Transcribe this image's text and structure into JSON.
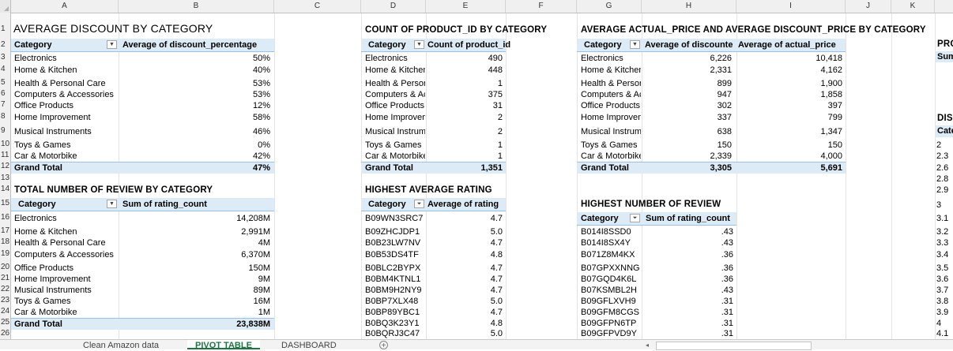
{
  "columns": [
    "A",
    "B",
    "C",
    "D",
    "E",
    "F",
    "G",
    "H",
    "I",
    "J",
    "K"
  ],
  "rows": [
    "1",
    "2",
    "3",
    "4",
    "5",
    "6",
    "7",
    "8",
    "9",
    "10",
    "11",
    "12",
    "13",
    "14",
    "15",
    "16",
    "17",
    "18",
    "19",
    "20",
    "21",
    "22",
    "23",
    "24",
    "25",
    "26"
  ],
  "pivot1": {
    "title": "AVERAGE DISCOUNT BY CATEGORY",
    "h1": "Category",
    "h2": "Average of discount_percentage",
    "rows": [
      {
        "c": "Electronics",
        "v": "50%"
      },
      {
        "c": "Home & Kitchen",
        "v": "40%"
      },
      {
        "c": "Health & Personal Care",
        "v": "53%"
      },
      {
        "c": "Computers & Accessories",
        "v": "53%"
      },
      {
        "c": "Office Products",
        "v": "12%"
      },
      {
        "c": "Home Improvement",
        "v": "58%"
      },
      {
        "c": "Musical Instruments",
        "v": "46%"
      },
      {
        "c": "Toys & Games",
        "v": "0%"
      },
      {
        "c": "Car & Motorbike",
        "v": "42%"
      }
    ],
    "total_label": "Grand Total",
    "total": "47%"
  },
  "pivot2": {
    "title": "COUNT OF PRODUCT_ID BY CATEGORY",
    "h1": "Category",
    "h2": "Count of product_id",
    "rows": [
      {
        "c": "Electronics",
        "v": "490"
      },
      {
        "c": "Home & Kitchen",
        "v": "448"
      },
      {
        "c": "Health & Person",
        "v": "1"
      },
      {
        "c": "Computers & Ac",
        "v": "375"
      },
      {
        "c": "Office Products",
        "v": "31"
      },
      {
        "c": "Home Improvem",
        "v": "2"
      },
      {
        "c": "Musical Instrume",
        "v": "2"
      },
      {
        "c": "Toys & Games",
        "v": "1"
      },
      {
        "c": "Car & Motorbike",
        "v": "1"
      }
    ],
    "total_label": "Grand Total",
    "total": "1,351"
  },
  "pivot3": {
    "title": "AVERAGE ACTUAL_PRICE AND AVERAGE DISCOUNT_PRICE BY CATEGORY",
    "h1": "Category",
    "h2": "Average of discounte",
    "h3": "Average of actual_price",
    "rows": [
      {
        "c": "Electronics",
        "v1": "6,226",
        "v2": "10,418"
      },
      {
        "c": "Home & Kitchen",
        "v1": "2,331",
        "v2": "4,162"
      },
      {
        "c": "Health & Person",
        "v1": "899",
        "v2": "1,900"
      },
      {
        "c": "Computers & Ac",
        "v1": "947",
        "v2": "1,858"
      },
      {
        "c": "Office Products",
        "v1": "302",
        "v2": "397"
      },
      {
        "c": "Home Improvem",
        "v1": "337",
        "v2": "799"
      },
      {
        "c": "Musical Instrume",
        "v1": "638",
        "v2": "1,347"
      },
      {
        "c": "Toys & Games",
        "v1": "150",
        "v2": "150"
      },
      {
        "c": "Car & Motorbike",
        "v1": "2,339",
        "v2": "4,000"
      }
    ],
    "total_label": "Grand Total",
    "total1": "3,305",
    "total2": "5,691"
  },
  "pivot4": {
    "title": "TOTAL NUMBER OF REVIEW BY CATEGORY",
    "h1": "Category",
    "h2": "Sum of rating_count",
    "rows": [
      {
        "c": "Electronics",
        "v": "14,208M"
      },
      {
        "c": "Home & Kitchen",
        "v": "2,991M"
      },
      {
        "c": "Health & Personal Care",
        "v": "4M"
      },
      {
        "c": "Computers & Accessories",
        "v": "6,370M"
      },
      {
        "c": "Office Products",
        "v": "150M"
      },
      {
        "c": "Home Improvement",
        "v": "9M"
      },
      {
        "c": "Musical Instruments",
        "v": "89M"
      },
      {
        "c": "Toys & Games",
        "v": "16M"
      },
      {
        "c": "Car & Motorbike",
        "v": "1M"
      }
    ],
    "total_label": "Grand Total",
    "total": "23,838M"
  },
  "pivot5": {
    "title": "HIGHEST AVERAGE RATING",
    "h1": "Category",
    "h2": "Average of rating",
    "rows": [
      {
        "c": "B09WN3SRC7",
        "v": "4.7"
      },
      {
        "c": "B09ZHCJDP1",
        "v": "5.0"
      },
      {
        "c": "B0B23LW7NV",
        "v": "4.7"
      },
      {
        "c": "B0B53DS4TF",
        "v": "4.8"
      },
      {
        "c": "B0BLC2BYPX",
        "v": "4.7"
      },
      {
        "c": "B0BM4KTNL1",
        "v": "4.7"
      },
      {
        "c": "B0BM9H2NY9",
        "v": "4.7"
      },
      {
        "c": "B0BP7XLX48",
        "v": "5.0"
      },
      {
        "c": "B0BP89YBC1",
        "v": "4.7"
      },
      {
        "c": "B0BQ3K23Y1",
        "v": "4.8"
      },
      {
        "c": "B0BQRJ3C47",
        "v": "5.0"
      }
    ]
  },
  "pivot6": {
    "title": "HIGHEST NUMBER OF REVIEW",
    "h1": "Category",
    "h2": "Sum of rating_count",
    "rows": [
      {
        "c": "B014I8SSD0",
        "v": ".43"
      },
      {
        "c": "B014I8SX4Y",
        "v": ".43"
      },
      {
        "c": "B071Z8M4KX",
        "v": ".36"
      },
      {
        "c": "B07GPXXNNG",
        "v": ".36"
      },
      {
        "c": "B07GQD4K6L",
        "v": ".36"
      },
      {
        "c": "B07KSMBL2H",
        "v": ".43"
      },
      {
        "c": "B09GFLXVH9",
        "v": ".31"
      },
      {
        "c": "B09GFM8CGS",
        "v": ".31"
      },
      {
        "c": "B09GFPN6TP",
        "v": ".31"
      },
      {
        "c": "B09GFPVD9Y",
        "v": ".31"
      }
    ]
  },
  "partial": {
    "pro": "PRO",
    "sum": "Sum",
    "dis": "DIS",
    "cate": "Cate",
    "values": [
      "2",
      "2.3",
      "2.6",
      "2.8",
      "2.9",
      "",
      "3",
      "",
      "3.1",
      "3.2",
      "3.3",
      "3.4",
      "3.5",
      "3.6",
      "3.7",
      "3.8",
      "3.9",
      "4",
      "4.1"
    ]
  },
  "tabs": {
    "t1": "Clean Amazon data",
    "t2": "PIVOT TABLE",
    "t3": "DASHBOARD",
    "add": "+"
  }
}
